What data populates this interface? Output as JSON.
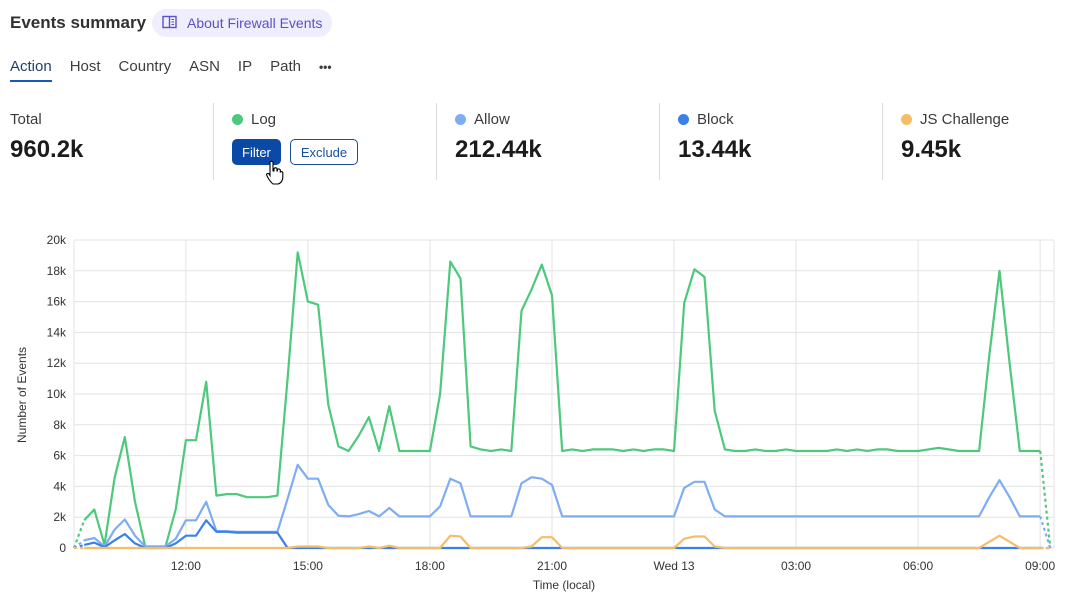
{
  "header": {
    "title": "Events summary",
    "about_label": "About Firewall Events",
    "about_icon": "book-icon"
  },
  "tabs": [
    {
      "label": "Action",
      "active": true
    },
    {
      "label": "Host"
    },
    {
      "label": "Country"
    },
    {
      "label": "ASN"
    },
    {
      "label": "IP"
    },
    {
      "label": "Path"
    },
    {
      "label": "•••"
    }
  ],
  "stats": {
    "total": {
      "label": "Total",
      "value": "960.2k"
    },
    "log": {
      "label": "Log",
      "color": "#4dc97b",
      "filter_label": "Filter",
      "exclude_label": "Exclude"
    },
    "allow": {
      "label": "Allow",
      "value": "212.44k",
      "color": "#7eadf3"
    },
    "block": {
      "label": "Block",
      "value": "13.44k",
      "color": "#3a80e6"
    },
    "challenge": {
      "label": "JS Challenge",
      "value": "9.45k",
      "color": "#f5bd68"
    }
  },
  "chart_data": {
    "type": "line",
    "xlabel": "Time (local)",
    "ylabel": "Number of Events",
    "ylim": [
      0,
      20000
    ],
    "yticks": [
      "0",
      "2k",
      "4k",
      "6k",
      "8k",
      "10k",
      "12k",
      "14k",
      "16k",
      "18k",
      "20k"
    ],
    "xticks": [
      {
        "label": "12:00",
        "at": "12:00"
      },
      {
        "label": "15:00",
        "at": "15:00"
      },
      {
        "label": "18:00",
        "at": "18:00"
      },
      {
        "label": "21:00",
        "at": "21:00"
      },
      {
        "label": "Wed 13",
        "at": "00:00"
      },
      {
        "label": "03:00",
        "at": "03:00"
      },
      {
        "label": "06:00",
        "at": "06:00"
      },
      {
        "label": "09:00",
        "at": "09:00 "
      }
    ],
    "grid": true,
    "x": [
      "09:15",
      "09:30",
      "09:45",
      "10:00",
      "10:15",
      "10:30",
      "10:45",
      "11:00",
      "11:15",
      "11:30",
      "11:45",
      "12:00",
      "12:15",
      "12:30",
      "12:45",
      "13:00",
      "13:15",
      "13:30",
      "13:45",
      "14:00",
      "14:15",
      "14:30",
      "14:45",
      "15:00",
      "15:15",
      "15:30",
      "15:45",
      "16:00",
      "16:15",
      "16:30",
      "16:45",
      "17:00",
      "17:15",
      "17:30",
      "17:45",
      "18:00",
      "18:15",
      "18:30",
      "18:45",
      "19:00",
      "19:15",
      "19:30",
      "19:45",
      "20:00",
      "20:15",
      "20:30",
      "20:45",
      "21:00",
      "21:15",
      "21:30",
      "21:45",
      "22:00",
      "22:15",
      "22:30",
      "22:45",
      "23:00",
      "23:15",
      "23:30",
      "23:45",
      "00:00",
      "00:15",
      "00:30",
      "00:45",
      "01:00",
      "01:15",
      "01:30",
      "01:45",
      "02:00",
      "02:15",
      "02:30",
      "02:45",
      "03:00",
      "03:15",
      "03:30",
      "03:45",
      "04:00",
      "04:15",
      "04:30",
      "04:45",
      "05:00",
      "05:15",
      "05:30",
      "05:45",
      "06:00",
      "06:15",
      "06:30",
      "06:45",
      "07:00",
      "07:15",
      "07:30",
      "07:45",
      "08:00",
      "08:15",
      "08:30",
      "08:45",
      "09:00 ",
      "09:15 "
    ],
    "series": [
      {
        "name": "Log",
        "color": "#4dc97b",
        "values": [
          0,
          1800,
          2500,
          200,
          4600,
          7200,
          3000,
          100,
          100,
          100,
          2500,
          7000,
          7000,
          10800,
          3400,
          3500,
          3500,
          3300,
          3300,
          3300,
          3400,
          11000,
          19200,
          16000,
          15800,
          9300,
          6600,
          6300,
          7300,
          8500,
          6300,
          9200,
          6300,
          6300,
          6300,
          6300,
          10000,
          18600,
          17500,
          6600,
          6400,
          6300,
          6400,
          6300,
          15400,
          16800,
          18400,
          16400,
          6300,
          6400,
          6300,
          6400,
          6400,
          6400,
          6300,
          6400,
          6300,
          6400,
          6400,
          6300,
          15900,
          18100,
          17600,
          8900,
          6400,
          6300,
          6300,
          6400,
          6300,
          6300,
          6400,
          6300,
          6300,
          6300,
          6300,
          6400,
          6300,
          6400,
          6300,
          6400,
          6400,
          6300,
          6300,
          6300,
          6400,
          6500,
          6400,
          6300,
          6300,
          6300,
          12500,
          18000,
          12000,
          6300,
          6300,
          6300,
          0
        ]
      },
      {
        "name": "Allow",
        "color": "#7eadf3",
        "values": [
          0,
          500,
          650,
          100,
          1200,
          1850,
          800,
          100,
          100,
          100,
          600,
          1800,
          1800,
          3000,
          1100,
          1100,
          1050,
          1050,
          1050,
          1050,
          1050,
          3200,
          5400,
          4500,
          4500,
          2800,
          2100,
          2050,
          2200,
          2400,
          2050,
          2600,
          2050,
          2050,
          2050,
          2050,
          2700,
          4500,
          4200,
          2050,
          2050,
          2050,
          2050,
          2050,
          4200,
          4600,
          4500,
          4100,
          2050,
          2050,
          2050,
          2050,
          2050,
          2050,
          2050,
          2050,
          2050,
          2050,
          2050,
          2050,
          3900,
          4300,
          4300,
          2500,
          2050,
          2050,
          2050,
          2050,
          2050,
          2050,
          2050,
          2050,
          2050,
          2050,
          2050,
          2050,
          2050,
          2050,
          2050,
          2050,
          2050,
          2050,
          2050,
          2050,
          2050,
          2050,
          2050,
          2050,
          2050,
          2050,
          3300,
          4400,
          3300,
          2050,
          2050,
          2050,
          0
        ]
      },
      {
        "name": "Block",
        "color": "#3a80e6",
        "values": [
          0,
          200,
          350,
          50,
          500,
          900,
          300,
          0,
          0,
          0,
          300,
          800,
          800,
          1800,
          1050,
          1050,
          1000,
          1000,
          1000,
          1000,
          1000,
          0,
          0,
          0,
          0,
          0,
          0,
          0,
          0,
          0,
          0,
          0,
          0,
          0,
          0,
          0,
          0,
          0,
          0,
          0,
          0,
          0,
          0,
          0,
          0,
          0,
          0,
          0,
          0,
          0,
          0,
          0,
          0,
          0,
          0,
          0,
          0,
          0,
          0,
          0,
          0,
          0,
          0,
          0,
          0,
          0,
          0,
          0,
          0,
          0,
          0,
          0,
          0,
          0,
          0,
          0,
          0,
          0,
          0,
          0,
          0,
          0,
          0,
          0,
          0,
          0,
          0,
          0,
          0,
          0,
          0,
          0,
          0,
          0,
          0,
          0,
          0
        ]
      },
      {
        "name": "JS Challenge",
        "color": "#f5bd68",
        "values": [
          0,
          0,
          0,
          0,
          0,
          0,
          0,
          0,
          0,
          0,
          0,
          0,
          0,
          0,
          0,
          0,
          0,
          0,
          0,
          0,
          0,
          0,
          100,
          100,
          100,
          0,
          0,
          0,
          0,
          100,
          0,
          150,
          0,
          0,
          0,
          0,
          0,
          800,
          750,
          0,
          0,
          0,
          0,
          0,
          0,
          100,
          700,
          700,
          0,
          0,
          0,
          0,
          0,
          0,
          0,
          0,
          0,
          0,
          0,
          0,
          600,
          750,
          750,
          100,
          0,
          0,
          0,
          0,
          0,
          0,
          0,
          0,
          0,
          0,
          0,
          0,
          0,
          0,
          0,
          0,
          0,
          0,
          0,
          0,
          0,
          0,
          0,
          0,
          0,
          0,
          400,
          800,
          400,
          0,
          0,
          0,
          0
        ]
      }
    ]
  }
}
